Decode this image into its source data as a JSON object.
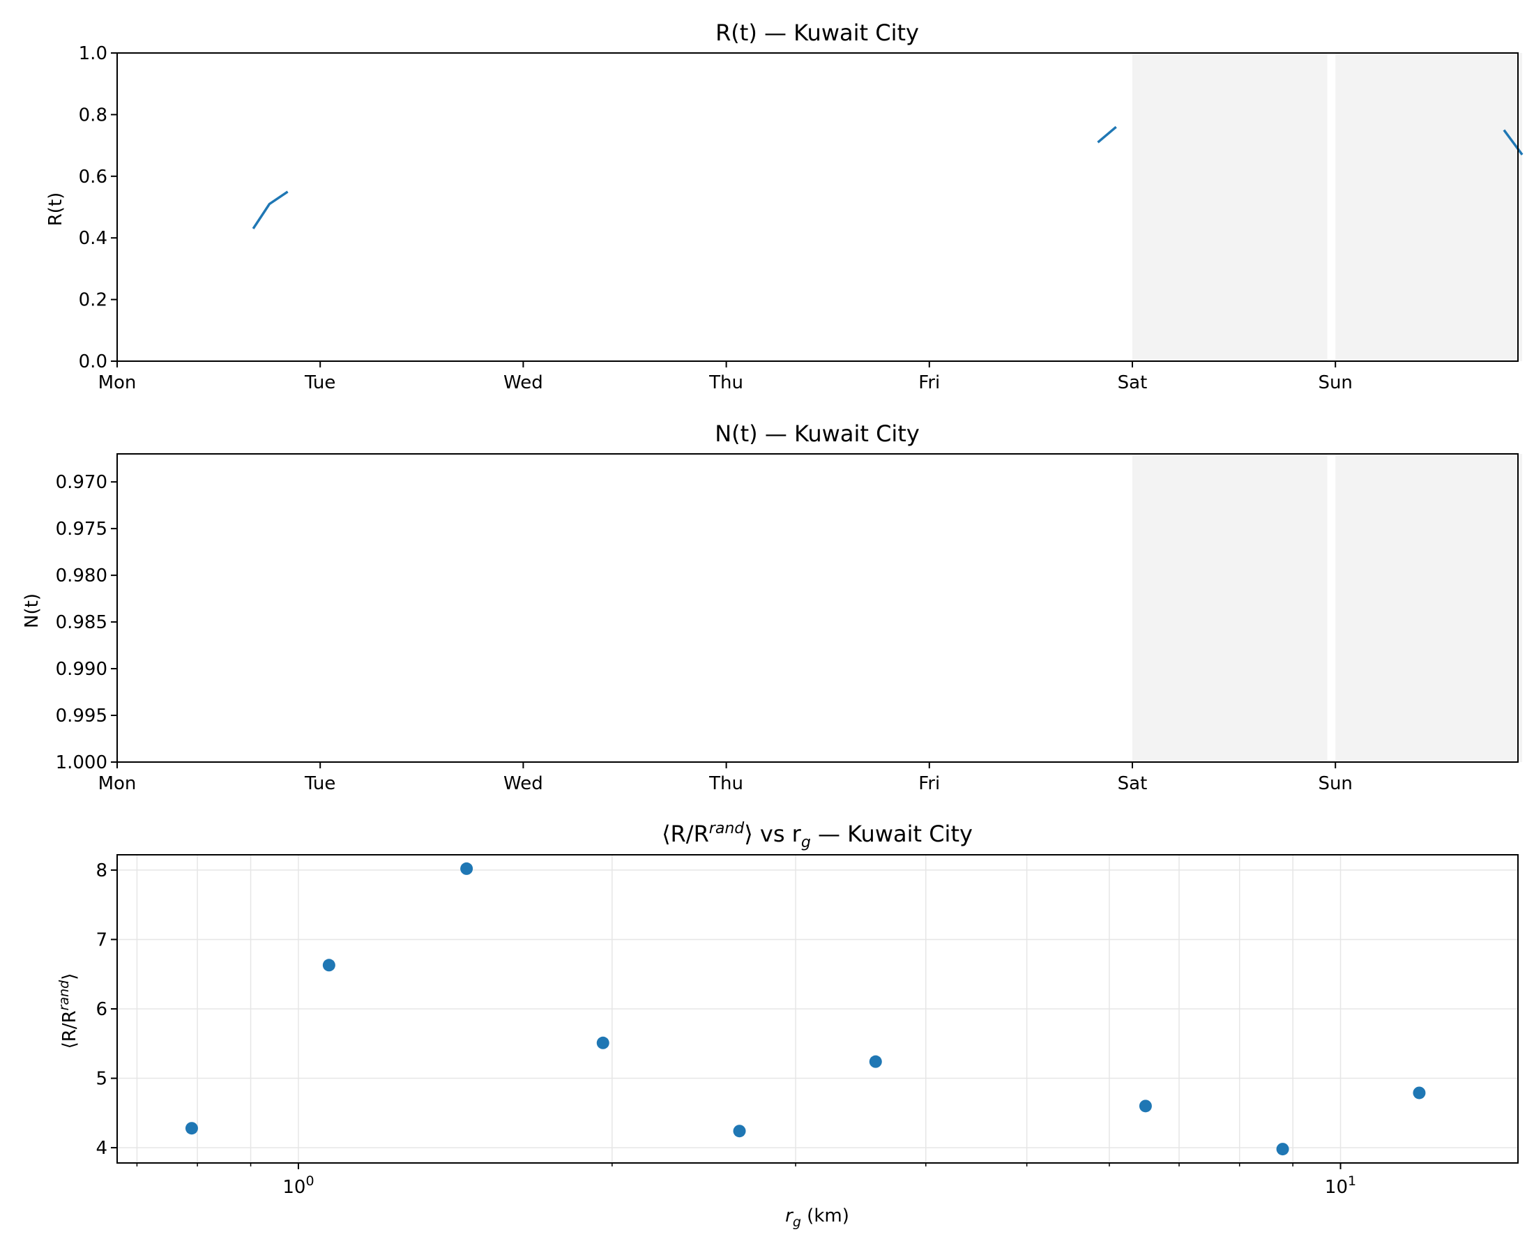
{
  "chart_data": [
    {
      "type": "line",
      "title": "R(t) — Kuwait City",
      "ylabel": "R(t)",
      "xlabel": "",
      "x_ticks": [
        "Mon",
        "Tue",
        "Wed",
        "Thu",
        "Fri",
        "Sat",
        "Sun"
      ],
      "xlim_days": [
        0,
        6.92
      ],
      "ylim": [
        0,
        1
      ],
      "y_ticks": [
        "0.0",
        "0.2",
        "0.4",
        "0.6",
        "0.8",
        "1.0"
      ],
      "weekend_shading": [
        [
          5.0,
          5.96
        ],
        [
          6.0,
          6.92
        ]
      ],
      "line_color": "#1f77b4",
      "series": [
        {
          "x": [
            0.67,
            0.75,
            0.84
          ],
          "y": [
            0.43,
            0.51,
            0.55
          ]
        },
        {
          "x": [
            4.83,
            4.92
          ],
          "y": [
            0.71,
            0.76
          ]
        },
        {
          "x": [
            6.83,
            6.92
          ],
          "y": [
            0.75,
            0.67
          ]
        }
      ]
    },
    {
      "type": "line",
      "title": "N(t) — Kuwait City",
      "ylabel": "N(t)",
      "xlabel": "",
      "x_ticks": [
        "Mon",
        "Tue",
        "Wed",
        "Thu",
        "Fri",
        "Sat",
        "Sun"
      ],
      "xlim_days": [
        0,
        6.92
      ],
      "ylim": [
        1.0,
        0.967
      ],
      "y_ticks": [
        "0.970",
        "0.975",
        "0.980",
        "0.985",
        "0.990",
        "0.995",
        "1.000"
      ],
      "weekend_shading": [
        [
          5.0,
          5.96
        ],
        [
          6.0,
          6.92
        ]
      ],
      "series": []
    },
    {
      "type": "scatter",
      "title_parts": {
        "pre": "⟨R/R",
        "sup": "rand",
        "mid": "⟩ vs r",
        "sub": "g",
        "post": " — Kuwait City"
      },
      "ylabel_parts": {
        "pre": "⟨R/R",
        "sup": "rand",
        "post": "⟩"
      },
      "xlabel_parts": {
        "pre": "r",
        "sub": "g",
        "post": " (km)"
      },
      "x_scale": "log",
      "xlim": [
        0.67,
        14.8
      ],
      "ylim": [
        3.78,
        8.22
      ],
      "y_ticks": [
        "4",
        "5",
        "6",
        "7",
        "8"
      ],
      "x_tick_labels": [
        {
          "base": "10",
          "exp": "0",
          "value": 1
        },
        {
          "base": "10",
          "exp": "1",
          "value": 10
        }
      ],
      "grid": true,
      "marker_color": "#1f77b4",
      "points": [
        {
          "x": 0.79,
          "y": 4.28
        },
        {
          "x": 1.07,
          "y": 6.63
        },
        {
          "x": 1.45,
          "y": 8.02
        },
        {
          "x": 1.96,
          "y": 5.51
        },
        {
          "x": 2.65,
          "y": 4.24
        },
        {
          "x": 3.58,
          "y": 5.24
        },
        {
          "x": 6.5,
          "y": 4.6
        },
        {
          "x": 8.8,
          "y": 3.98
        },
        {
          "x": 11.9,
          "y": 4.79
        }
      ]
    }
  ]
}
